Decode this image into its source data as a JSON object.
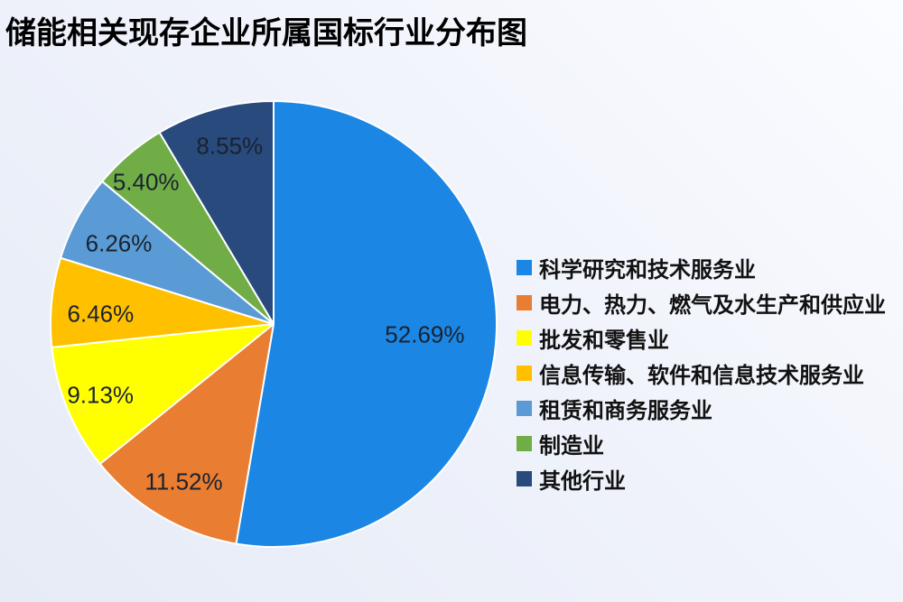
{
  "title": "储能相关现存企业所属国标行业分布图",
  "chart_data": {
    "type": "pie",
    "title": "储能相关现存企业所属国标行业分布图",
    "legend_position": "right",
    "direction": "clockwise",
    "start_angle_deg": 0,
    "value_label_color": "#1a2230",
    "slices": [
      {
        "label": "科学研究和技术服务业",
        "value": 52.69,
        "display": "52.69%",
        "color": "#1b86e3"
      },
      {
        "label": "电力、热力、燃气及水生产和供应业",
        "value": 11.52,
        "display": "11.52%",
        "color": "#e97d31"
      },
      {
        "label": "批发和零售业",
        "value": 9.13,
        "display": "9.13%",
        "color": "#ffff00"
      },
      {
        "label": "信息传输、软件和信息技术服务业",
        "value": 6.46,
        "display": "6.46%",
        "color": "#ffc000"
      },
      {
        "label": "租赁和商务服务业",
        "value": 6.26,
        "display": "6.26%",
        "color": "#5b9bd5"
      },
      {
        "label": "制造业",
        "value": 5.4,
        "display": "5.40%",
        "color": "#70ad47"
      },
      {
        "label": "其他行业",
        "value": 8.55,
        "display": "8.55%",
        "color": "#284a7d"
      }
    ]
  }
}
